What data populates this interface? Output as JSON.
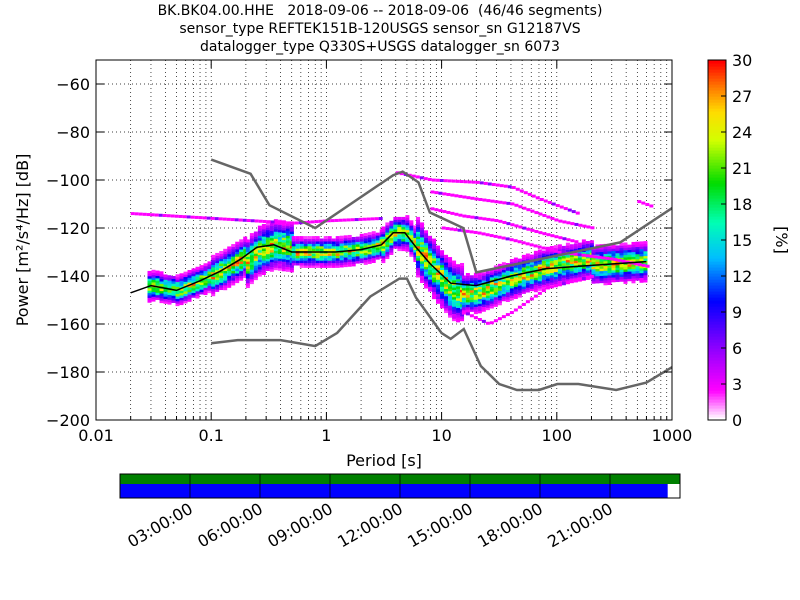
{
  "chart_data": {
    "type": "heatmap",
    "title_lines": [
      "BK.BK04.00.HHE   2018-09-06 -- 2018-09-06  (46/46 segments)",
      "sensor_type REFTEK151B-120USGS sensor_sn G12187VS",
      "datalogger_type Q330S+USGS datalogger_sn 6073"
    ],
    "xlabel": "Period [s]",
    "ylabel": "Power [m²/s⁴/Hz] [dB]",
    "x_scale": "log",
    "xlim": [
      0.01,
      1000
    ],
    "ylim": [
      -200,
      -50
    ],
    "x_ticks": [
      0.01,
      0.1,
      1,
      10,
      100,
      1000
    ],
    "x_tick_labels": [
      "0.01",
      "0.1",
      "1",
      "10",
      "100",
      "1000"
    ],
    "y_ticks": [
      -200,
      -180,
      -160,
      -140,
      -120,
      -100,
      -80,
      -60
    ],
    "y_tick_labels": [
      "−200",
      "−180",
      "−160",
      "−140",
      "−120",
      "−100",
      "−80",
      "−60"
    ],
    "grid": true,
    "colorbar": {
      "label": "[%]",
      "range": [
        0,
        30
      ],
      "ticks": [
        0,
        3,
        6,
        9,
        12,
        15,
        18,
        21,
        24,
        27,
        30
      ],
      "tick_labels": [
        "0",
        "3",
        "6",
        "9",
        "12",
        "15",
        "18",
        "21",
        "24",
        "27",
        "30"
      ]
    },
    "noise_models": {
      "nhnm": [
        [
          0.1,
          -91.5
        ],
        [
          0.22,
          -97.4
        ],
        [
          0.32,
          -110.5
        ],
        [
          0.8,
          -120
        ],
        [
          3.8,
          -98
        ],
        [
          4.6,
          -96.5
        ],
        [
          6.3,
          -101
        ],
        [
          7.9,
          -113.5
        ],
        [
          15.4,
          -120
        ],
        [
          20,
          -138.5
        ],
        [
          354.8,
          -126
        ],
        [
          10000,
          -80
        ]
      ],
      "nlnm": [
        [
          0.1,
          -168
        ],
        [
          0.17,
          -166.7
        ],
        [
          0.4,
          -166.7
        ],
        [
          0.8,
          -169.2
        ],
        [
          1.24,
          -163.7
        ],
        [
          2.4,
          -148.6
        ],
        [
          4.3,
          -141.1
        ],
        [
          5,
          -141.1
        ],
        [
          6,
          -149
        ],
        [
          10,
          -163.8
        ],
        [
          12,
          -166.2
        ],
        [
          15.6,
          -162.1
        ],
        [
          21.9,
          -177.5
        ],
        [
          31.6,
          -185
        ],
        [
          45,
          -187.5
        ],
        [
          70,
          -187.5
        ],
        [
          101,
          -185
        ],
        [
          154,
          -185
        ],
        [
          328,
          -187.5
        ],
        [
          600,
          -184.4
        ],
        [
          1000,
          -178
        ]
      ]
    },
    "mean_curve": [
      [
        0.02,
        -147
      ],
      [
        0.03,
        -144
      ],
      [
        0.05,
        -146
      ],
      [
        0.08,
        -142
      ],
      [
        0.12,
        -138
      ],
      [
        0.18,
        -133
      ],
      [
        0.25,
        -128
      ],
      [
        0.35,
        -127
      ],
      [
        0.5,
        -130
      ],
      [
        0.8,
        -130
      ],
      [
        1.2,
        -130
      ],
      [
        2.0,
        -129
      ],
      [
        3.0,
        -127
      ],
      [
        3.8,
        -122
      ],
      [
        4.8,
        -122
      ],
      [
        6.0,
        -128
      ],
      [
        8.0,
        -135
      ],
      [
        12.0,
        -143
      ],
      [
        20.0,
        -144
      ],
      [
        40.0,
        -140
      ],
      [
        80.0,
        -137
      ],
      [
        150.0,
        -136
      ],
      [
        300.0,
        -135
      ],
      [
        600.0,
        -134
      ]
    ],
    "modes": [
      {
        "start": 0.028,
        "end": 0.1,
        "offsets": [
          [
            0.028,
            0
          ],
          [
            0.1,
            0
          ]
        ],
        "spread": 6
      },
      {
        "start": 0.1,
        "end": 0.2,
        "offsets": [
          [
            0.1,
            0
          ],
          [
            0.2,
            0
          ]
        ],
        "spread": 8
      },
      {
        "start": 0.2,
        "end": 0.5,
        "offsets": [
          [
            0.2,
            -3
          ],
          [
            0.5,
            2
          ]
        ],
        "spread": 10
      },
      {
        "start": 0.5,
        "end": 3,
        "offsets": [
          [
            0.5,
            0
          ],
          [
            3,
            0
          ]
        ],
        "spread": 6
      },
      {
        "start": 3,
        "end": 6,
        "offsets": [
          [
            3,
            0
          ],
          [
            6,
            0
          ]
        ],
        "spread": 7
      },
      {
        "start": 6,
        "end": 15,
        "offsets": [
          [
            6,
            0
          ],
          [
            15,
            -4
          ]
        ],
        "spread": 12
      },
      {
        "start": 15,
        "end": 200,
        "offsets": [
          [
            15,
            -4
          ],
          [
            200,
            3
          ]
        ],
        "spread": 8
      },
      {
        "start": 200,
        "end": 600,
        "offsets": [
          [
            200,
            0
          ],
          [
            600,
            0
          ]
        ],
        "spread": 8
      }
    ],
    "outlier_bands": [
      {
        "x": [
          0.02,
          0.1,
          0.5,
          1,
          3
        ],
        "y": [
          -114,
          -116,
          -118,
          -117,
          -116
        ]
      },
      {
        "x": [
          4,
          8,
          20,
          40,
          70,
          150
        ],
        "y": [
          -97,
          -100,
          -101,
          -103,
          -108,
          -114
        ]
      },
      {
        "x": [
          8,
          20,
          40,
          100,
          200
        ],
        "y": [
          -105,
          -108,
          -110,
          -117,
          -120
        ]
      },
      {
        "x": [
          8,
          15,
          30,
          70,
          150
        ],
        "y": [
          -112,
          -115,
          -117,
          -122,
          -126
        ]
      },
      {
        "x": [
          10,
          20,
          40,
          100,
          300,
          600
        ],
        "y": [
          -120,
          -122,
          -125,
          -130,
          -133,
          -136
        ]
      },
      {
        "x": [
          15,
          25,
          40,
          80,
          200
        ],
        "y": [
          -155,
          -160,
          -155,
          -145,
          -140
        ]
      },
      {
        "x": [
          500,
          650
        ],
        "y": [
          -109,
          -111
        ]
      }
    ],
    "timeline": {
      "tick_labels": [
        "03:00:00",
        "06:00:00",
        "09:00:00",
        "12:00:00",
        "15:00:00",
        "18:00:00",
        "21:00:00"
      ],
      "data_fraction": 0.978,
      "upper_color": "#008000",
      "lower_color": "#0000ff"
    }
  }
}
